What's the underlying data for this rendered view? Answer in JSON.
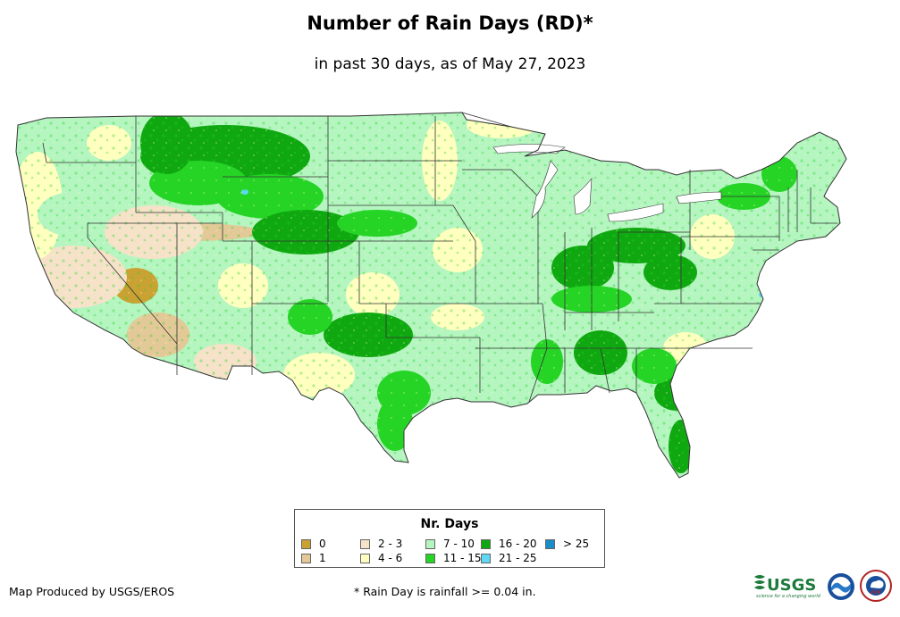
{
  "title": "Number of Rain Days (RD)*",
  "subtitle": "in past 30 days, as of May 27, 2023",
  "legend": {
    "title": "Nr. Days",
    "items": [
      {
        "label": "0",
        "color": "#c9a233"
      },
      {
        "label": "1",
        "color": "#e3c997"
      },
      {
        "label": "2 - 3",
        "color": "#f5e2c8"
      },
      {
        "label": "4 - 6",
        "color": "#ffffc0"
      },
      {
        "label": "7 - 10",
        "color": "#b4f5c0"
      },
      {
        "label": "11 - 15",
        "color": "#25d425"
      },
      {
        "label": "16 - 20",
        "color": "#10a810"
      },
      {
        "label": "21 - 25",
        "color": "#5ed8f5"
      },
      {
        "label": "> 25",
        "color": "#1a8cc8"
      }
    ]
  },
  "footer": {
    "credit": "Map Produced by USGS/EROS",
    "note": "* Rain Day is rainfall >= 0.04 in."
  },
  "logos": {
    "usgs": "USGS",
    "usgs_tagline": "science for a changing world"
  }
}
